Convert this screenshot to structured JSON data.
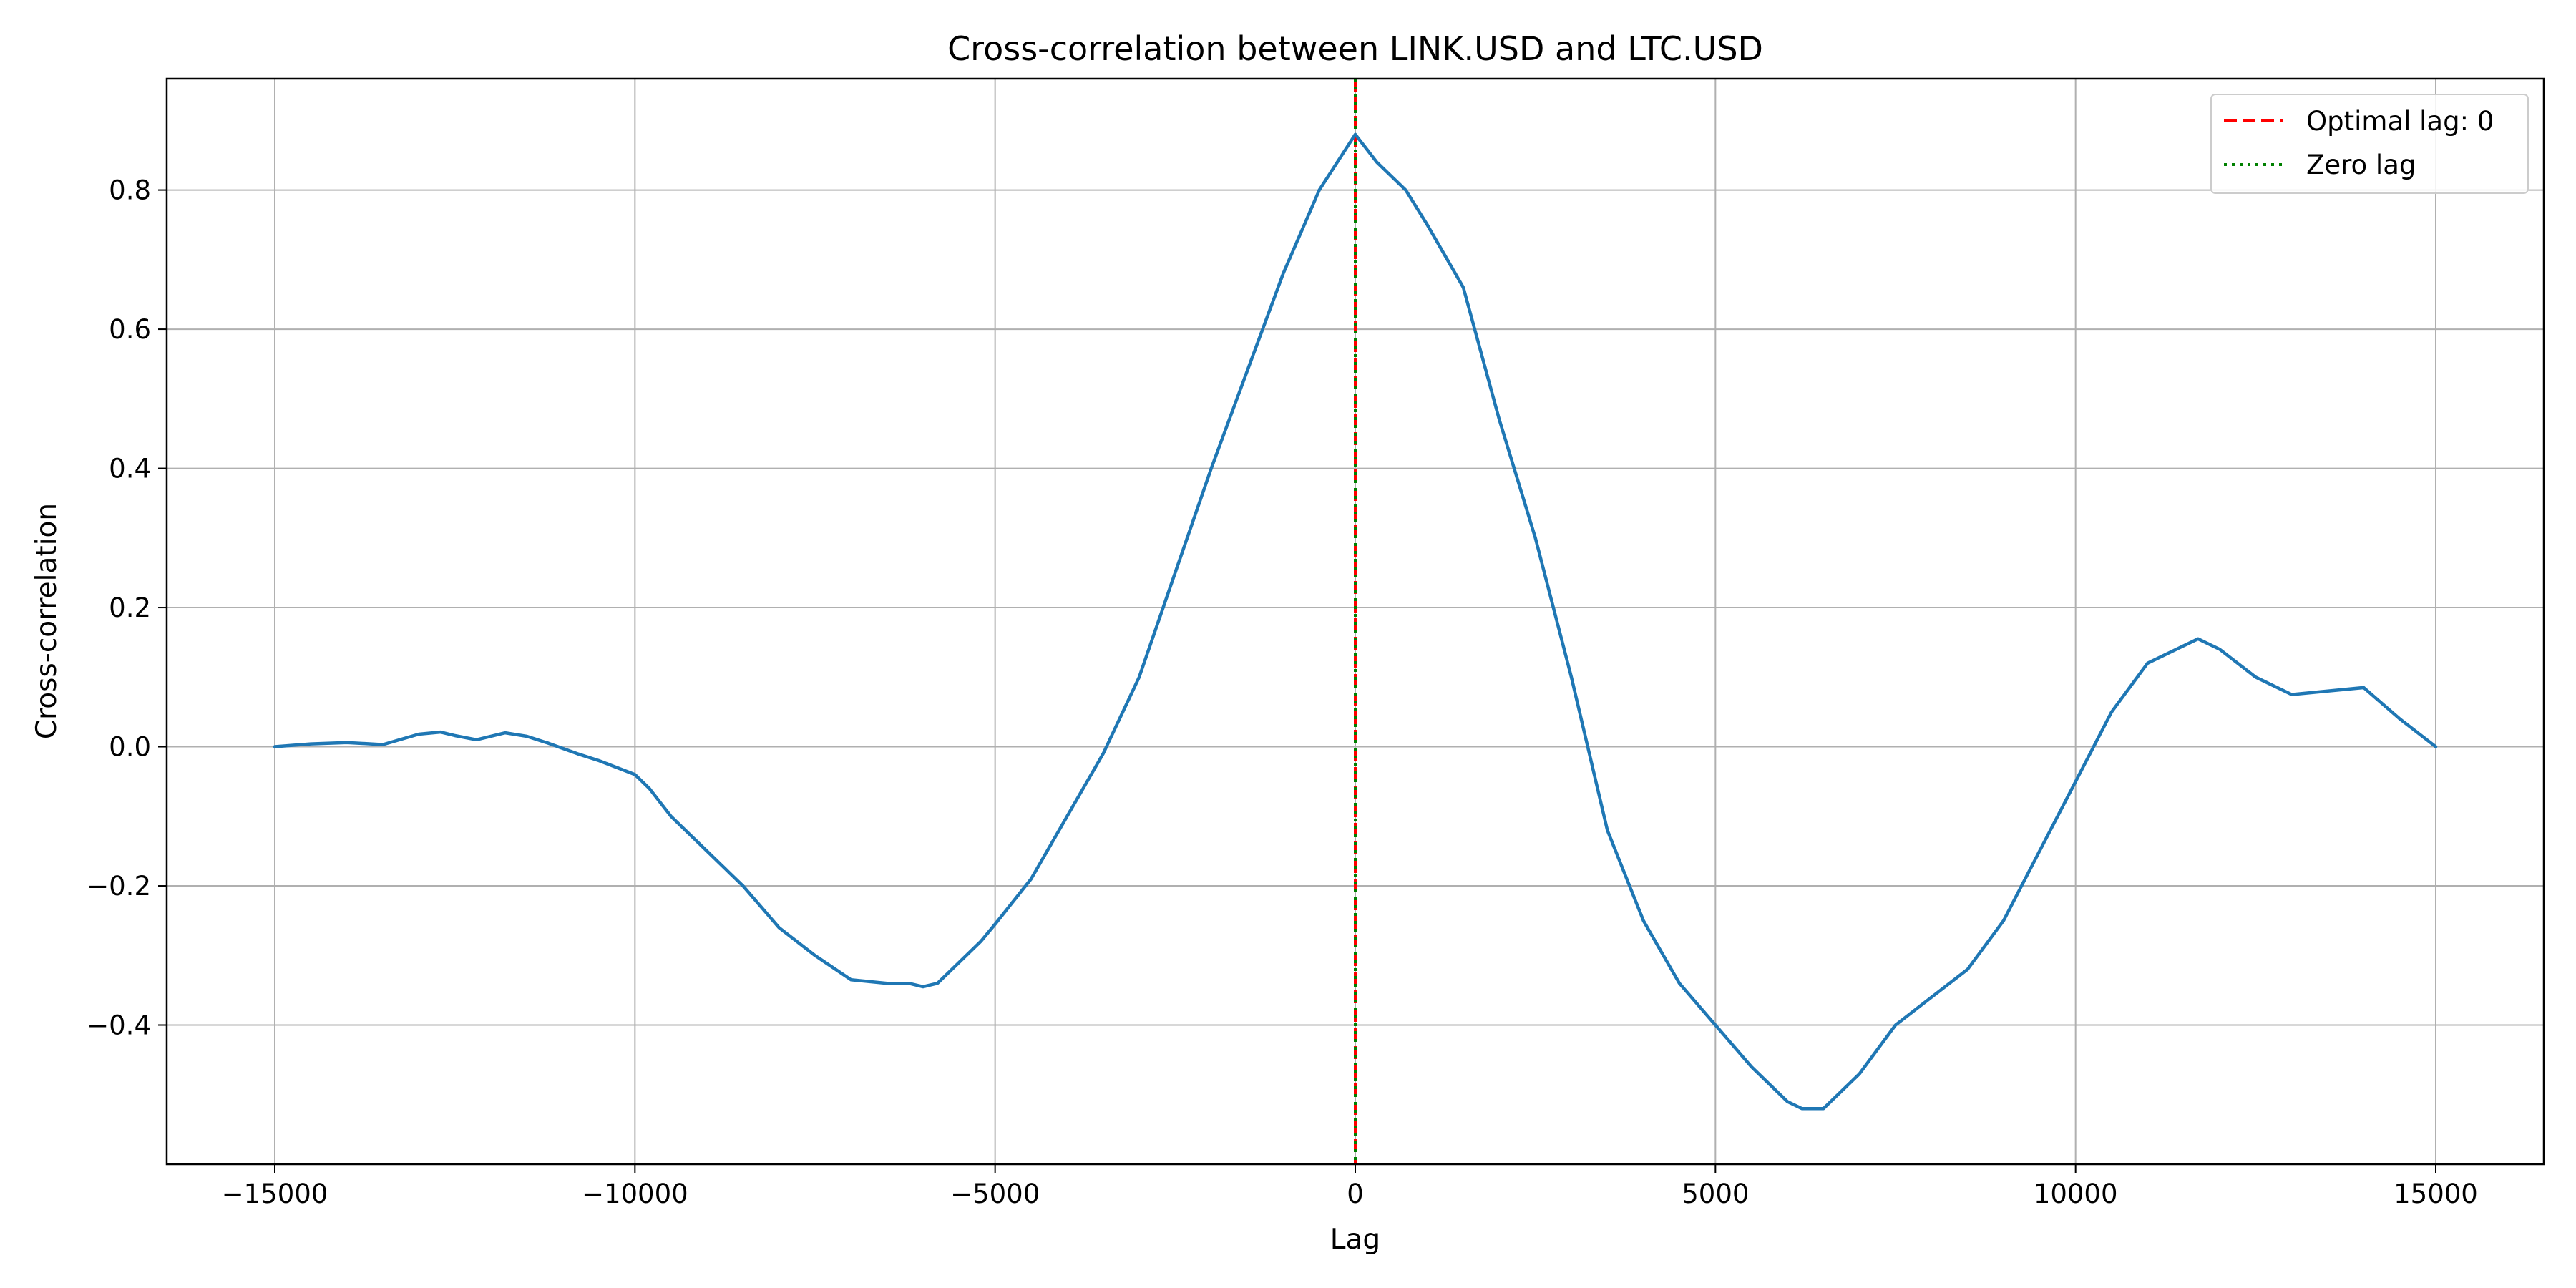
{
  "chart_data": {
    "type": "line",
    "title": "Cross-correlation between LINK.USD and LTC.USD",
    "xlabel": "Lag",
    "ylabel": "Cross-correlation",
    "xlim": [
      -16500,
      16500
    ],
    "ylim": [
      -0.6,
      0.96
    ],
    "x_ticks": [
      -15000,
      -10000,
      -5000,
      0,
      5000,
      10000,
      15000
    ],
    "x_tick_labels": [
      "−15000",
      "−10000",
      "−5000",
      "0",
      "5000",
      "10000",
      "15000"
    ],
    "y_ticks": [
      -0.4,
      -0.2,
      0.0,
      0.2,
      0.4,
      0.6,
      0.8
    ],
    "y_tick_labels": [
      "−0.4",
      "−0.2",
      "0.0",
      "0.2",
      "0.4",
      "0.6",
      "0.8"
    ],
    "grid": true,
    "legend_position": "top-right",
    "series": [
      {
        "color": "#1f77b4",
        "x": [
          -15000,
          -14500,
          -14000,
          -13500,
          -13000,
          -12700,
          -12500,
          -12200,
          -11800,
          -11500,
          -11200,
          -10800,
          -10500,
          -10000,
          -9800,
          -9500,
          -9000,
          -8500,
          -8000,
          -7500,
          -7000,
          -6500,
          -6200,
          -6000,
          -5800,
          -5500,
          -5200,
          -5000,
          -4500,
          -4000,
          -3500,
          -3000,
          -2500,
          -2000,
          -1500,
          -1000,
          -500,
          0,
          300,
          700,
          1000,
          1500,
          2000,
          2500,
          3000,
          3500,
          4000,
          4500,
          5000,
          5500,
          6000,
          6200,
          6500,
          7000,
          7500,
          8000,
          8500,
          9000,
          9500,
          10000,
          10500,
          11000,
          11700,
          12000,
          12500,
          13000,
          13500,
          14000,
          14500,
          15000
        ],
        "values": [
          0.0,
          0.004,
          0.006,
          0.003,
          0.018,
          0.021,
          0.016,
          0.01,
          0.02,
          0.015,
          0.005,
          -0.01,
          -0.02,
          -0.04,
          -0.06,
          -0.1,
          -0.15,
          -0.2,
          -0.26,
          -0.3,
          -0.335,
          -0.34,
          -0.34,
          -0.345,
          -0.34,
          -0.31,
          -0.28,
          -0.255,
          -0.19,
          -0.1,
          -0.01,
          0.1,
          0.25,
          0.4,
          0.54,
          0.68,
          0.8,
          0.88,
          0.84,
          0.8,
          0.75,
          0.66,
          0.47,
          0.3,
          0.1,
          -0.12,
          -0.25,
          -0.34,
          -0.4,
          -0.46,
          -0.51,
          -0.52,
          -0.52,
          -0.47,
          -0.4,
          -0.36,
          -0.32,
          -0.25,
          -0.15,
          -0.05,
          0.05,
          0.12,
          0.155,
          0.14,
          0.1,
          0.075,
          0.08,
          0.085,
          0.04,
          0.0
        ]
      }
    ],
    "vlines": [
      {
        "x": 0,
        "label": "Optimal lag: 0",
        "color": "#ff0000",
        "style": "dashed"
      },
      {
        "x": 0,
        "label": "Zero lag",
        "color": "#008000",
        "style": "dotted"
      }
    ]
  }
}
